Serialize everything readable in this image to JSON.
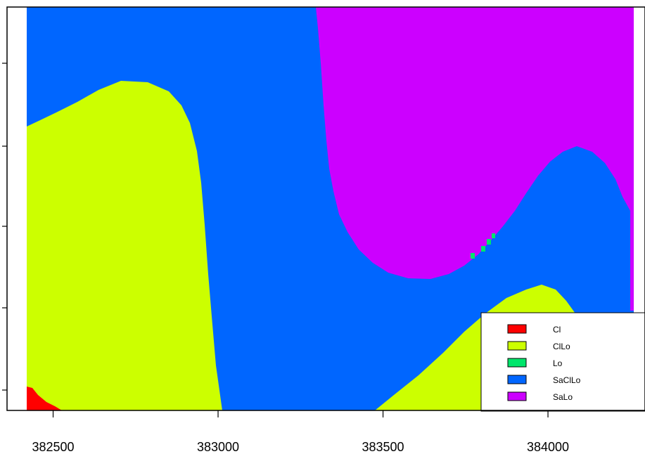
{
  "chart_data": {
    "type": "heatmap",
    "title": "",
    "xlabel": "",
    "ylabel": "",
    "xlim": [
      382420,
      384260
    ],
    "x_ticks": [
      "382500",
      "383000",
      "383500",
      "384000"
    ],
    "x_tick_values": [
      382500,
      383000,
      383500,
      384000
    ],
    "y_tick_count": 5,
    "grid": false,
    "legend_position": "bottom-right",
    "classes": [
      {
        "label": "Cl",
        "color": "#ff0000"
      },
      {
        "label": "ClLo",
        "color": "#ccff00"
      },
      {
        "label": "Lo",
        "color": "#00e66b"
      },
      {
        "label": "SaClLo",
        "color": "#0066ff"
      },
      {
        "label": "SaLo",
        "color": "#cc00ff"
      }
    ],
    "background_color": "#0066ff"
  }
}
